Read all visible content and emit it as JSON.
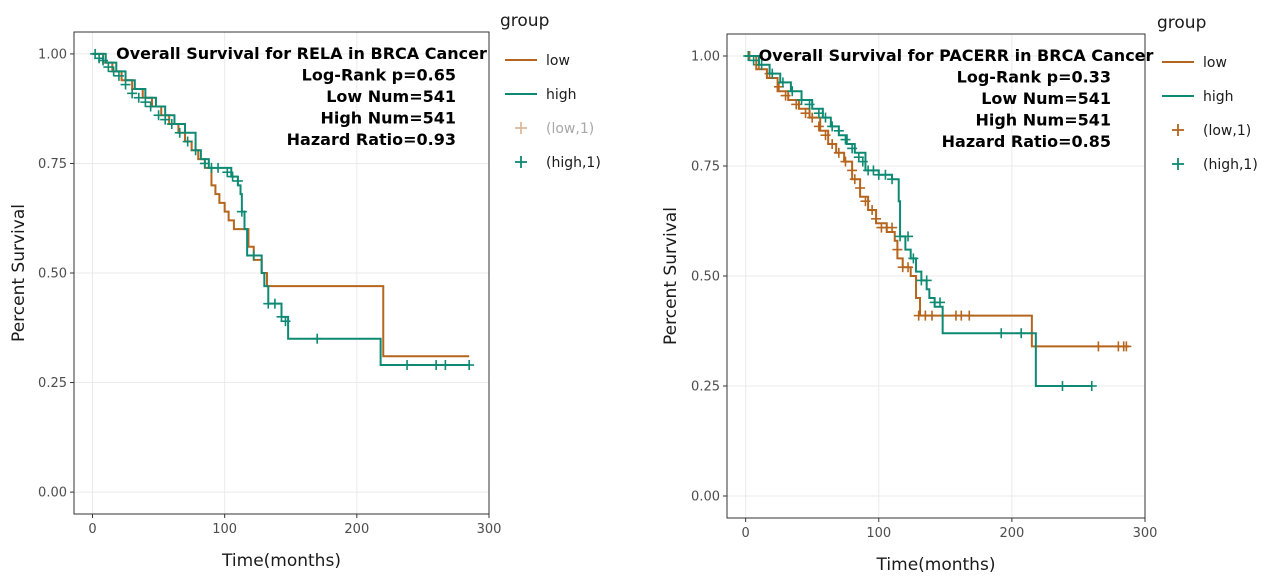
{
  "chart_data": [
    {
      "type": "line",
      "subtype": "kaplan-meier",
      "title": "Overall Survival for RELA in BRCA Cancer",
      "annotations": [
        "Log-Rank p=0.65",
        "Low Num=541",
        "High Num=541",
        "Hazard Ratio=0.93"
      ],
      "xlabel": "Time(months)",
      "ylabel": "Percent Survival",
      "xlim": [
        -14,
        300
      ],
      "ylim": [
        -0.05,
        1.05
      ],
      "x_ticks": [
        "0",
        "100",
        "200",
        "300"
      ],
      "x_tick_values": [
        0,
        100,
        200,
        300
      ],
      "y_ticks": [
        "0.00",
        "0.25",
        "0.50",
        "0.75",
        "1.00"
      ],
      "y_tick_values": [
        0,
        0.25,
        0.5,
        0.75,
        1.0
      ],
      "grid": true,
      "legend": {
        "title": "group",
        "position": "right",
        "items": [
          {
            "label": "low",
            "kind": "line",
            "color": "#b5651d"
          },
          {
            "label": "high",
            "kind": "line",
            "color": "#0e8a74"
          },
          {
            "label": "(low,1)",
            "kind": "cross",
            "color": "#b5651d",
            "faded": true
          },
          {
            "label": "(high,1)",
            "kind": "cross",
            "color": "#0e8a74"
          }
        ]
      },
      "series": [
        {
          "name": "low",
          "color": "#b5651d",
          "steps": [
            [
              0,
              1.0
            ],
            [
              8,
              0.98
            ],
            [
              15,
              0.96
            ],
            [
              22,
              0.94
            ],
            [
              30,
              0.92
            ],
            [
              38,
              0.9
            ],
            [
              45,
              0.88
            ],
            [
              52,
              0.86
            ],
            [
              58,
              0.84
            ],
            [
              65,
              0.82
            ],
            [
              70,
              0.8
            ],
            [
              75,
              0.78
            ],
            [
              80,
              0.76
            ],
            [
              85,
              0.74
            ],
            [
              90,
              0.7
            ],
            [
              93,
              0.68
            ],
            [
              96,
              0.66
            ],
            [
              100,
              0.64
            ],
            [
              103,
              0.62
            ],
            [
              107,
              0.6
            ],
            [
              118,
              0.56
            ],
            [
              122,
              0.53
            ],
            [
              128,
              0.5
            ],
            [
              132,
              0.47
            ],
            [
              220,
              0.47
            ],
            [
              220,
              0.31
            ],
            [
              285,
              0.31
            ]
          ],
          "censors": []
        },
        {
          "name": "high",
          "color": "#0e8a74",
          "steps": [
            [
              0,
              1.0
            ],
            [
              10,
              0.98
            ],
            [
              18,
              0.96
            ],
            [
              25,
              0.94
            ],
            [
              32,
              0.92
            ],
            [
              40,
              0.9
            ],
            [
              48,
              0.88
            ],
            [
              55,
              0.86
            ],
            [
              62,
              0.84
            ],
            [
              70,
              0.82
            ],
            [
              78,
              0.78
            ],
            [
              82,
              0.76
            ],
            [
              88,
              0.74
            ],
            [
              100,
              0.74
            ],
            [
              105,
              0.72
            ],
            [
              110,
              0.7
            ],
            [
              112,
              0.68
            ],
            [
              113,
              0.64
            ],
            [
              115,
              0.6
            ],
            [
              117,
              0.54
            ],
            [
              125,
              0.54
            ],
            [
              128,
              0.5
            ],
            [
              130,
              0.47
            ],
            [
              133,
              0.43
            ],
            [
              140,
              0.43
            ],
            [
              143,
              0.4
            ],
            [
              148,
              0.35
            ],
            [
              218,
              0.35
            ],
            [
              218,
              0.29
            ],
            [
              285,
              0.29
            ]
          ],
          "censors": [
            [
              2,
              1.0
            ],
            [
              5,
              0.99
            ],
            [
              8,
              0.985
            ],
            [
              12,
              0.97
            ],
            [
              16,
              0.96
            ],
            [
              20,
              0.95
            ],
            [
              25,
              0.93
            ],
            [
              30,
              0.91
            ],
            [
              35,
              0.9
            ],
            [
              40,
              0.89
            ],
            [
              44,
              0.88
            ],
            [
              50,
              0.86
            ],
            [
              55,
              0.85
            ],
            [
              60,
              0.84
            ],
            [
              66,
              0.82
            ],
            [
              72,
              0.8
            ],
            [
              78,
              0.78
            ],
            [
              85,
              0.75
            ],
            [
              90,
              0.74
            ],
            [
              95,
              0.74
            ],
            [
              102,
              0.73
            ],
            [
              106,
              0.72
            ],
            [
              110,
              0.71
            ],
            [
              113,
              0.64
            ],
            [
              122,
              0.54
            ],
            [
              133,
              0.43
            ],
            [
              138,
              0.43
            ],
            [
              143,
              0.4
            ],
            [
              146,
              0.39
            ],
            [
              170,
              0.35
            ],
            [
              238,
              0.29
            ],
            [
              260,
              0.29
            ],
            [
              267,
              0.29
            ],
            [
              285,
              0.29
            ]
          ]
        }
      ]
    },
    {
      "type": "line",
      "subtype": "kaplan-meier",
      "title": "Overall Survival for PACERR in BRCA Cancer",
      "annotations": [
        "Log-Rank p=0.33",
        "Low Num=541",
        "High Num=541",
        "Hazard Ratio=0.85"
      ],
      "xlabel": "Time(months)",
      "ylabel": "Percent Survival",
      "xlim": [
        -14,
        300
      ],
      "ylim": [
        -0.05,
        1.05
      ],
      "x_ticks": [
        "0",
        "100",
        "200",
        "300"
      ],
      "x_tick_values": [
        0,
        100,
        200,
        300
      ],
      "y_ticks": [
        "0.00",
        "0.25",
        "0.50",
        "0.75",
        "1.00"
      ],
      "y_tick_values": [
        0,
        0.25,
        0.5,
        0.75,
        1.0
      ],
      "grid": true,
      "legend": {
        "title": "group",
        "position": "right",
        "items": [
          {
            "label": "low",
            "kind": "line",
            "color": "#b5651d"
          },
          {
            "label": "high",
            "kind": "line",
            "color": "#0e8a74"
          },
          {
            "label": "(low,1)",
            "kind": "cross",
            "color": "#b5651d"
          },
          {
            "label": "(high,1)",
            "kind": "cross",
            "color": "#0e8a74"
          }
        ]
      },
      "series": [
        {
          "name": "low",
          "color": "#b5651d",
          "steps": [
            [
              0,
              1.0
            ],
            [
              8,
              0.97
            ],
            [
              16,
              0.95
            ],
            [
              24,
              0.92
            ],
            [
              32,
              0.9
            ],
            [
              40,
              0.88
            ],
            [
              48,
              0.86
            ],
            [
              56,
              0.83
            ],
            [
              62,
              0.8
            ],
            [
              68,
              0.78
            ],
            [
              74,
              0.76
            ],
            [
              80,
              0.72
            ],
            [
              86,
              0.68
            ],
            [
              92,
              0.65
            ],
            [
              98,
              0.62
            ],
            [
              106,
              0.6
            ],
            [
              112,
              0.58
            ],
            [
              114,
              0.54
            ],
            [
              118,
              0.52
            ],
            [
              124,
              0.5
            ],
            [
              128,
              0.45
            ],
            [
              131,
              0.41
            ],
            [
              215,
              0.41
            ],
            [
              215,
              0.34
            ],
            [
              288,
              0.34
            ]
          ],
          "censors": [
            [
              3,
              1.0
            ],
            [
              10,
              0.98
            ],
            [
              18,
              0.96
            ],
            [
              25,
              0.93
            ],
            [
              30,
              0.91
            ],
            [
              38,
              0.89
            ],
            [
              45,
              0.87
            ],
            [
              50,
              0.86
            ],
            [
              55,
              0.84
            ],
            [
              60,
              0.82
            ],
            [
              65,
              0.8
            ],
            [
              70,
              0.78
            ],
            [
              75,
              0.76
            ],
            [
              80,
              0.74
            ],
            [
              82,
              0.72
            ],
            [
              86,
              0.7
            ],
            [
              90,
              0.67
            ],
            [
              95,
              0.65
            ],
            [
              98,
              0.63
            ],
            [
              102,
              0.61
            ],
            [
              106,
              0.61
            ],
            [
              110,
              0.61
            ],
            [
              114,
              0.56
            ],
            [
              118,
              0.52
            ],
            [
              122,
              0.52
            ],
            [
              130,
              0.41
            ],
            [
              135,
              0.41
            ],
            [
              140,
              0.41
            ],
            [
              158,
              0.41
            ],
            [
              162,
              0.41
            ],
            [
              168,
              0.41
            ],
            [
              265,
              0.34
            ],
            [
              280,
              0.34
            ],
            [
              284,
              0.34
            ],
            [
              286,
              0.34
            ]
          ]
        },
        {
          "name": "high",
          "color": "#0e8a74",
          "steps": [
            [
              0,
              1.0
            ],
            [
              10,
              0.98
            ],
            [
              18,
              0.96
            ],
            [
              26,
              0.94
            ],
            [
              34,
              0.92
            ],
            [
              42,
              0.9
            ],
            [
              50,
              0.88
            ],
            [
              58,
              0.86
            ],
            [
              64,
              0.84
            ],
            [
              70,
              0.82
            ],
            [
              76,
              0.8
            ],
            [
              82,
              0.78
            ],
            [
              90,
              0.74
            ],
            [
              100,
              0.73
            ],
            [
              110,
              0.72
            ],
            [
              115,
              0.67
            ],
            [
              116,
              0.59
            ],
            [
              120,
              0.56
            ],
            [
              124,
              0.54
            ],
            [
              128,
              0.51
            ],
            [
              132,
              0.49
            ],
            [
              136,
              0.47
            ],
            [
              138,
              0.45
            ],
            [
              142,
              0.43
            ],
            [
              148,
              0.37
            ],
            [
              218,
              0.37
            ],
            [
              218,
              0.25
            ],
            [
              260,
              0.25
            ]
          ],
          "censors": [
            [
              2,
              1.0
            ],
            [
              6,
              0.99
            ],
            [
              12,
              0.98
            ],
            [
              20,
              0.96
            ],
            [
              28,
              0.94
            ],
            [
              35,
              0.92
            ],
            [
              42,
              0.9
            ],
            [
              48,
              0.89
            ],
            [
              55,
              0.87
            ],
            [
              60,
              0.86
            ],
            [
              65,
              0.84
            ],
            [
              70,
              0.83
            ],
            [
              75,
              0.81
            ],
            [
              80,
              0.79
            ],
            [
              85,
              0.77
            ],
            [
              88,
              0.76
            ],
            [
              92,
              0.74
            ],
            [
              96,
              0.74
            ],
            [
              100,
              0.73
            ],
            [
              105,
              0.73
            ],
            [
              110,
              0.72
            ],
            [
              116,
              0.59
            ],
            [
              122,
              0.59
            ],
            [
              126,
              0.54
            ],
            [
              132,
              0.49
            ],
            [
              136,
              0.49
            ],
            [
              142,
              0.44
            ],
            [
              146,
              0.44
            ],
            [
              192,
              0.37
            ],
            [
              207,
              0.37
            ],
            [
              238,
              0.25
            ],
            [
              260,
              0.25
            ]
          ]
        }
      ]
    }
  ]
}
